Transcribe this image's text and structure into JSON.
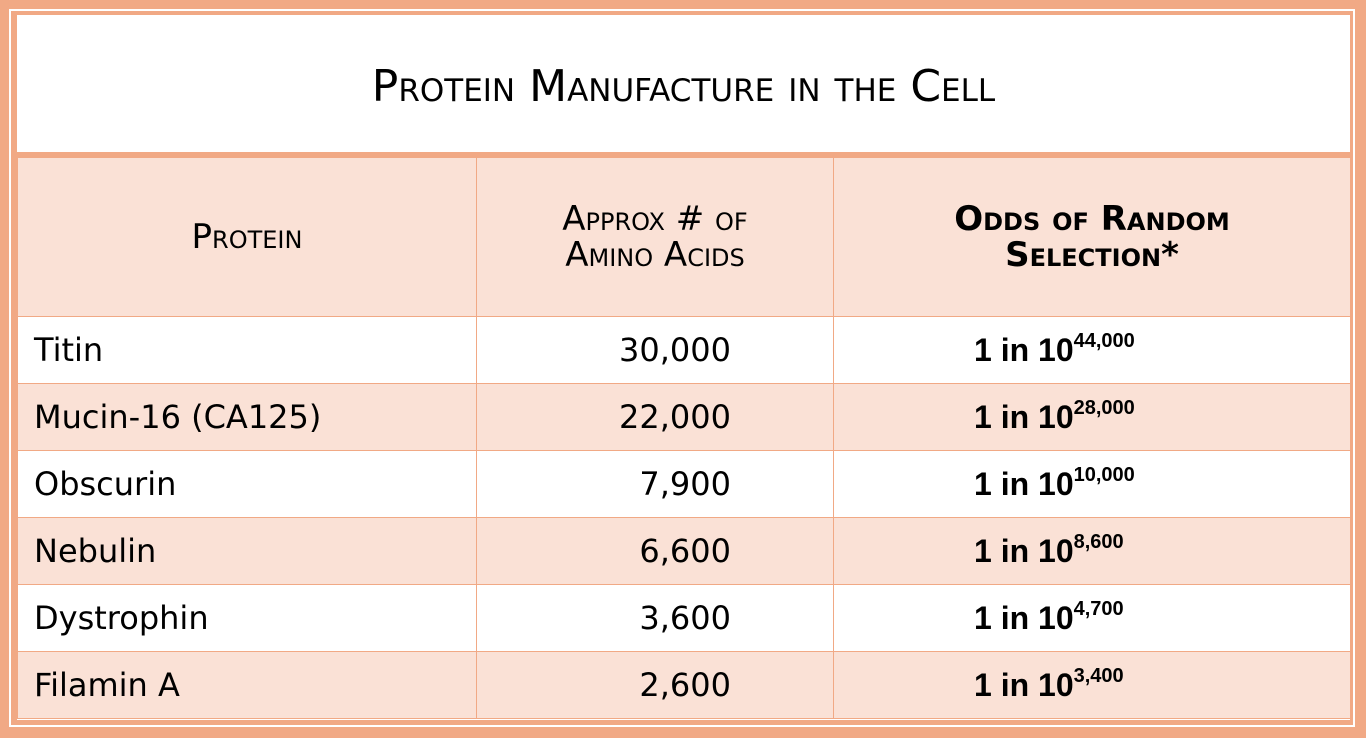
{
  "title": "Protein Manufacture in the Cell",
  "headers": [
    "Protein",
    "Approx # of Amino Acids",
    "Odds of Random Selection*"
  ],
  "header_lines": {
    "col2": [
      "Approx # of",
      "Amino Acids"
    ],
    "col3": [
      "Odds of Random",
      "Selection*"
    ]
  },
  "rows": [
    {
      "protein": "Titin",
      "amino_acids": "30,000",
      "odds_prefix": "1 in 10",
      "odds_exponent": "44,000"
    },
    {
      "protein": "Mucin-16 (CA125)",
      "amino_acids": "22,000",
      "odds_prefix": "1 in 10",
      "odds_exponent": "28,000"
    },
    {
      "protein": "Obscurin",
      "amino_acids": "7,900",
      "odds_prefix": "1 in 10",
      "odds_exponent": "10,000"
    },
    {
      "protein": "Nebulin",
      "amino_acids": "6,600",
      "odds_prefix": "1 in 10",
      "odds_exponent": "8,600"
    },
    {
      "protein": "Dystrophin",
      "amino_acids": "3,600",
      "odds_prefix": "1 in 10",
      "odds_exponent": "4,700"
    },
    {
      "protein": "Filamin A",
      "amino_acids": "2,600",
      "odds_prefix": "1 in 10",
      "odds_exponent": "3,400"
    }
  ],
  "colors": {
    "frame": "#f1a985",
    "band": "#fae1d6"
  }
}
